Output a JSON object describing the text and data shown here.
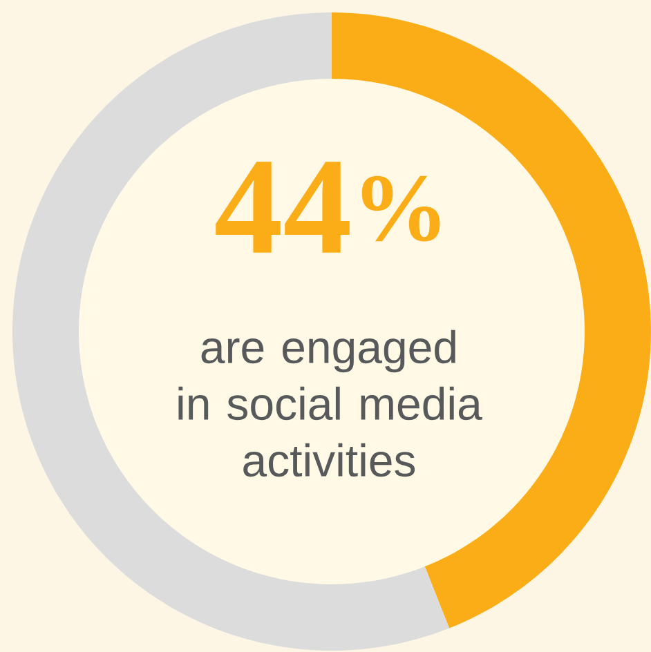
{
  "chart_data": {
    "type": "donut",
    "categories": [
      null,
      null
    ],
    "values": [
      44,
      56
    ],
    "colors": [
      "#fbad18",
      "#dcdcdc"
    ],
    "annotations": [
      "44$^{%}$",
      "are engaged in social media activities"
    ]
  }
}
